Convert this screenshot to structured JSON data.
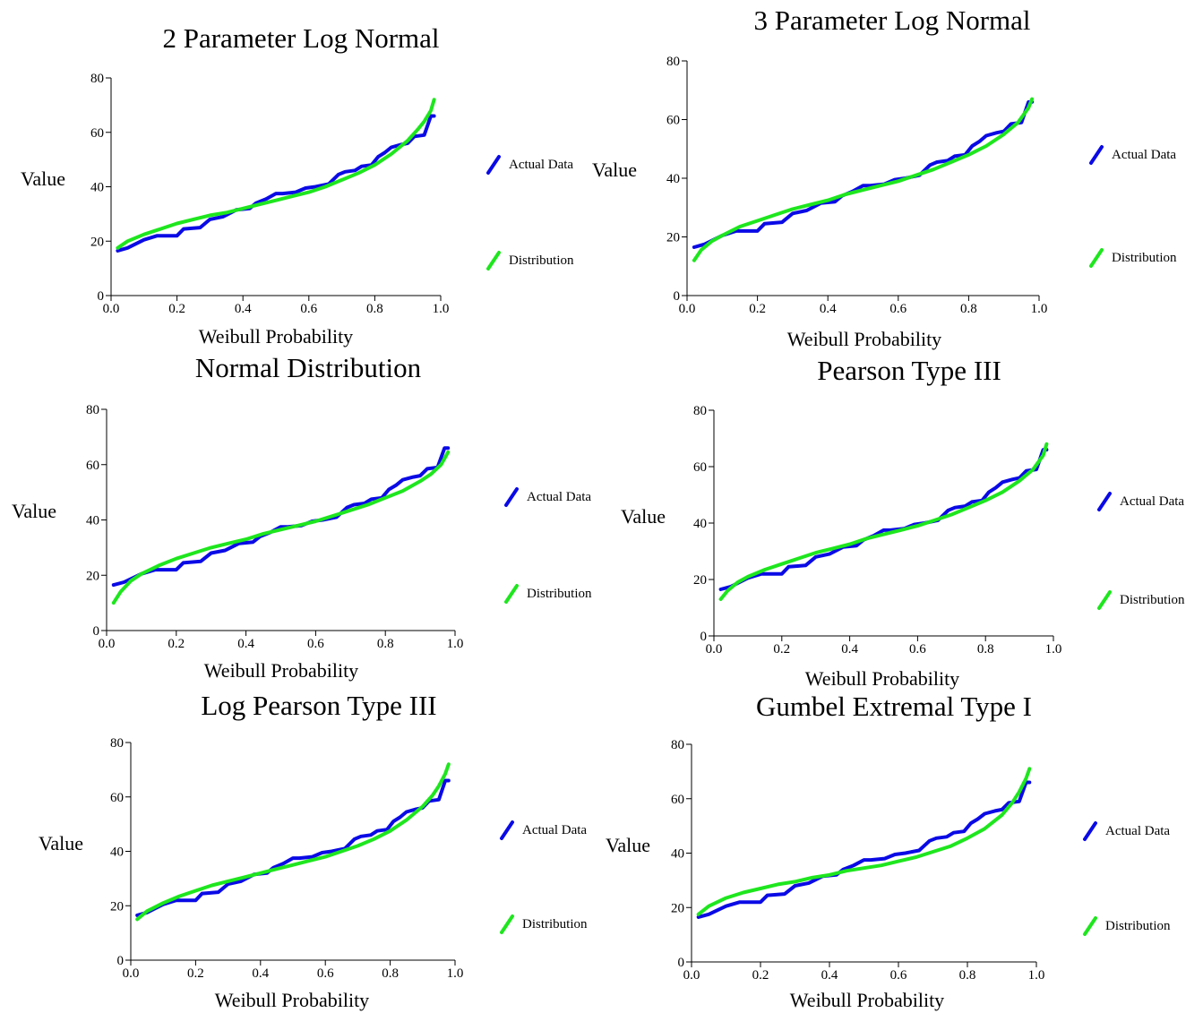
{
  "page": {
    "background": "#ffffff"
  },
  "legend": {
    "actual_label": "Actual Data",
    "distribution_label": "Distribution"
  },
  "colors": {
    "actual": "#0a0ae6",
    "distribution": "#1ee61e"
  },
  "chart_data": [
    {
      "type": "line",
      "title": "2 Parameter Log Normal",
      "xlabel": "Weibull Probability",
      "ylabel": "Value",
      "xlim": [
        0,
        1
      ],
      "ylim": [
        0,
        80
      ],
      "xticks": [
        "0.0",
        "0.2",
        "0.4",
        "0.6",
        "0.8",
        "1.0"
      ],
      "yticks": [
        "0",
        "20",
        "40",
        "60",
        "80"
      ],
      "legend_position": "right",
      "series": [
        {
          "name": "Actual Data",
          "color": "#0a0ae6",
          "x": [
            0.02,
            0.05,
            0.1,
            0.14,
            0.2,
            0.22,
            0.27,
            0.3,
            0.34,
            0.38,
            0.42,
            0.44,
            0.47,
            0.5,
            0.52,
            0.56,
            0.59,
            0.62,
            0.66,
            0.69,
            0.71,
            0.74,
            0.76,
            0.79,
            0.81,
            0.83,
            0.85,
            0.88,
            0.9,
            0.92,
            0.95,
            0.97,
            0.98
          ],
          "y": [
            16.5,
            17.5,
            20.5,
            22,
            22,
            24.5,
            25,
            28,
            29,
            31.5,
            32,
            34,
            35.5,
            37.5,
            37.5,
            38,
            39.5,
            40,
            41,
            44.5,
            45.5,
            46,
            47.5,
            48,
            51,
            52.5,
            54.5,
            55.5,
            56,
            58.5,
            59,
            66,
            66
          ]
        },
        {
          "name": "Distribution",
          "color": "#1ee61e",
          "x": [
            0.02,
            0.05,
            0.1,
            0.15,
            0.2,
            0.25,
            0.3,
            0.35,
            0.4,
            0.45,
            0.5,
            0.55,
            0.6,
            0.65,
            0.7,
            0.75,
            0.8,
            0.85,
            0.9,
            0.93,
            0.95,
            0.97,
            0.98
          ],
          "y": [
            17.5,
            20,
            22.5,
            24.5,
            26.5,
            28,
            29.5,
            30.5,
            32,
            33.5,
            35,
            36.5,
            38,
            40,
            42.5,
            45,
            48,
            52,
            57,
            61,
            64,
            68,
            72
          ]
        }
      ]
    },
    {
      "type": "line",
      "title": "3 Parameter Log Normal",
      "xlabel": "Weibull Probability",
      "ylabel": "Value",
      "xlim": [
        0,
        1
      ],
      "ylim": [
        0,
        80
      ],
      "xticks": [
        "0.0",
        "0.2",
        "0.4",
        "0.6",
        "0.8",
        "1.0"
      ],
      "yticks": [
        "0",
        "20",
        "40",
        "60",
        "80"
      ],
      "legend_position": "right",
      "series": [
        {
          "name": "Actual Data",
          "color": "#0a0ae6",
          "x": [
            0.02,
            0.05,
            0.1,
            0.14,
            0.2,
            0.22,
            0.27,
            0.3,
            0.34,
            0.38,
            0.42,
            0.44,
            0.47,
            0.5,
            0.52,
            0.56,
            0.59,
            0.62,
            0.66,
            0.69,
            0.71,
            0.74,
            0.76,
            0.79,
            0.81,
            0.83,
            0.85,
            0.88,
            0.9,
            0.92,
            0.95,
            0.97,
            0.98
          ],
          "y": [
            16.5,
            17.5,
            20.5,
            22,
            22,
            24.5,
            25,
            28,
            29,
            31.5,
            32,
            34,
            35.5,
            37.5,
            37.5,
            38,
            39.5,
            40,
            41,
            44.5,
            45.5,
            46,
            47.5,
            48,
            51,
            52.5,
            54.5,
            55.5,
            56,
            58.5,
            59,
            66,
            66
          ]
        },
        {
          "name": "Distribution",
          "color": "#1ee61e",
          "x": [
            0.02,
            0.04,
            0.07,
            0.1,
            0.15,
            0.2,
            0.25,
            0.3,
            0.35,
            0.4,
            0.45,
            0.5,
            0.55,
            0.6,
            0.65,
            0.7,
            0.75,
            0.8,
            0.85,
            0.9,
            0.94,
            0.97,
            0.98
          ],
          "y": [
            12,
            15.5,
            18.5,
            20.5,
            23.5,
            25.5,
            27.5,
            29.5,
            31,
            32.5,
            34.5,
            36,
            37.5,
            39,
            41,
            43,
            45.5,
            48,
            51,
            55,
            59,
            64,
            67
          ]
        }
      ]
    },
    {
      "type": "line",
      "title": "Normal Distribution",
      "xlabel": "Weibull Probability",
      "ylabel": "Value",
      "xlim": [
        0,
        1
      ],
      "ylim": [
        0,
        80
      ],
      "xticks": [
        "0.0",
        "0.2",
        "0.4",
        "0.6",
        "0.8",
        "1.0"
      ],
      "yticks": [
        "0",
        "20",
        "40",
        "60",
        "80"
      ],
      "legend_position": "right",
      "series": [
        {
          "name": "Actual Data",
          "color": "#0a0ae6",
          "x": [
            0.02,
            0.05,
            0.1,
            0.14,
            0.2,
            0.22,
            0.27,
            0.3,
            0.34,
            0.38,
            0.42,
            0.44,
            0.47,
            0.5,
            0.52,
            0.56,
            0.59,
            0.62,
            0.66,
            0.69,
            0.71,
            0.74,
            0.76,
            0.79,
            0.81,
            0.83,
            0.85,
            0.88,
            0.9,
            0.92,
            0.95,
            0.97,
            0.98
          ],
          "y": [
            16.5,
            17.5,
            20.5,
            22,
            22,
            24.5,
            25,
            28,
            29,
            31.5,
            32,
            34,
            35.5,
            37.5,
            37.5,
            38,
            39.5,
            40,
            41,
            44.5,
            45.5,
            46,
            47.5,
            48,
            51,
            52.5,
            54.5,
            55.5,
            56,
            58.5,
            59,
            66,
            66
          ]
        },
        {
          "name": "Distribution",
          "color": "#1ee61e",
          "x": [
            0.02,
            0.04,
            0.07,
            0.1,
            0.15,
            0.2,
            0.25,
            0.3,
            0.35,
            0.4,
            0.45,
            0.5,
            0.55,
            0.6,
            0.65,
            0.7,
            0.75,
            0.8,
            0.85,
            0.9,
            0.93,
            0.96,
            0.98
          ],
          "y": [
            10,
            14,
            18,
            20.5,
            23.5,
            26,
            28,
            30,
            31.5,
            33,
            35,
            36.5,
            38,
            39.5,
            41.5,
            43.5,
            45.5,
            48,
            50.5,
            54,
            56.5,
            60,
            64.5
          ]
        }
      ]
    },
    {
      "type": "line",
      "title": "Pearson Type III",
      "xlabel": "Weibull Probability",
      "ylabel": "Value",
      "xlim": [
        0,
        1
      ],
      "ylim": [
        0,
        80
      ],
      "xticks": [
        "0.0",
        "0.2",
        "0.4",
        "0.6",
        "0.8",
        "1.0"
      ],
      "yticks": [
        "0",
        "20",
        "40",
        "60",
        "80"
      ],
      "legend_position": "right",
      "series": [
        {
          "name": "Actual Data",
          "color": "#0a0ae6",
          "x": [
            0.02,
            0.05,
            0.1,
            0.14,
            0.2,
            0.22,
            0.27,
            0.3,
            0.34,
            0.38,
            0.42,
            0.44,
            0.47,
            0.5,
            0.52,
            0.56,
            0.59,
            0.62,
            0.66,
            0.69,
            0.71,
            0.74,
            0.76,
            0.79,
            0.81,
            0.83,
            0.85,
            0.88,
            0.9,
            0.92,
            0.95,
            0.97,
            0.98
          ],
          "y": [
            16.5,
            17.5,
            20.5,
            22,
            22,
            24.5,
            25,
            28,
            29,
            31.5,
            32,
            34,
            35.5,
            37.5,
            37.5,
            38,
            39.5,
            40,
            41,
            44.5,
            45.5,
            46,
            47.5,
            48,
            51,
            52.5,
            54.5,
            55.5,
            56,
            58.5,
            59,
            66,
            66
          ]
        },
        {
          "name": "Distribution",
          "color": "#1ee61e",
          "x": [
            0.02,
            0.04,
            0.07,
            0.1,
            0.15,
            0.2,
            0.25,
            0.3,
            0.35,
            0.4,
            0.45,
            0.5,
            0.55,
            0.6,
            0.65,
            0.7,
            0.75,
            0.8,
            0.85,
            0.9,
            0.94,
            0.97,
            0.98
          ],
          "y": [
            13,
            16,
            19,
            21,
            23.5,
            25.5,
            27.5,
            29.5,
            31,
            32.5,
            34.5,
            36,
            37.5,
            39,
            41,
            43,
            45.5,
            48,
            51,
            55,
            59,
            64,
            68
          ]
        }
      ]
    },
    {
      "type": "line",
      "title": "Log Pearson Type III",
      "xlabel": "Weibull Probability",
      "ylabel": "Value",
      "xlim": [
        0,
        1
      ],
      "ylim": [
        0,
        80
      ],
      "xticks": [
        "0.0",
        "0.2",
        "0.4",
        "0.6",
        "0.8",
        "1.0"
      ],
      "yticks": [
        "0",
        "20",
        "40",
        "60",
        "80"
      ],
      "legend_position": "right",
      "series": [
        {
          "name": "Actual Data",
          "color": "#0a0ae6",
          "x": [
            0.02,
            0.05,
            0.1,
            0.14,
            0.2,
            0.22,
            0.27,
            0.3,
            0.34,
            0.38,
            0.42,
            0.44,
            0.47,
            0.5,
            0.52,
            0.56,
            0.59,
            0.62,
            0.66,
            0.69,
            0.71,
            0.74,
            0.76,
            0.79,
            0.81,
            0.83,
            0.85,
            0.88,
            0.9,
            0.92,
            0.95,
            0.97,
            0.98
          ],
          "y": [
            16.5,
            17.5,
            20.5,
            22,
            22,
            24.5,
            25,
            28,
            29,
            31.5,
            32,
            34,
            35.5,
            37.5,
            37.5,
            38,
            39.5,
            40,
            41,
            44.5,
            45.5,
            46,
            47.5,
            48,
            51,
            52.5,
            54.5,
            55.5,
            56,
            58.5,
            59,
            66,
            66
          ]
        },
        {
          "name": "Distribution",
          "color": "#1ee61e",
          "x": [
            0.02,
            0.05,
            0.1,
            0.15,
            0.2,
            0.25,
            0.3,
            0.35,
            0.4,
            0.45,
            0.5,
            0.55,
            0.6,
            0.65,
            0.7,
            0.75,
            0.8,
            0.85,
            0.9,
            0.93,
            0.95,
            0.97,
            0.98
          ],
          "y": [
            15,
            18,
            21,
            23.5,
            25.5,
            27.5,
            29,
            30.5,
            32,
            33.5,
            35,
            36.5,
            38,
            40,
            42,
            44.5,
            47.5,
            51.5,
            56.5,
            60.5,
            64,
            68.5,
            72
          ]
        }
      ]
    },
    {
      "type": "line",
      "title": "Gumbel Extremal Type I",
      "xlabel": "Weibull Probability",
      "ylabel": "Value",
      "xlim": [
        0,
        1
      ],
      "ylim": [
        0,
        80
      ],
      "xticks": [
        "0.0",
        "0.2",
        "0.4",
        "0.6",
        "0.8",
        "1.0"
      ],
      "yticks": [
        "0",
        "20",
        "40",
        "60",
        "80"
      ],
      "legend_position": "right",
      "series": [
        {
          "name": "Actual Data",
          "color": "#0a0ae6",
          "x": [
            0.02,
            0.05,
            0.1,
            0.14,
            0.2,
            0.22,
            0.27,
            0.3,
            0.34,
            0.38,
            0.42,
            0.44,
            0.47,
            0.5,
            0.52,
            0.56,
            0.59,
            0.62,
            0.66,
            0.69,
            0.71,
            0.74,
            0.76,
            0.79,
            0.81,
            0.83,
            0.85,
            0.88,
            0.9,
            0.92,
            0.95,
            0.97,
            0.98
          ],
          "y": [
            16.5,
            17.5,
            20.5,
            22,
            22,
            24.5,
            25,
            28,
            29,
            31.5,
            32,
            34,
            35.5,
            37.5,
            37.5,
            38,
            39.5,
            40,
            41,
            44.5,
            45.5,
            46,
            47.5,
            48,
            51,
            52.5,
            54.5,
            55.5,
            56,
            58.5,
            59,
            66,
            66
          ]
        },
        {
          "name": "Distribution",
          "color": "#1ee61e",
          "x": [
            0.02,
            0.05,
            0.1,
            0.15,
            0.2,
            0.25,
            0.3,
            0.35,
            0.4,
            0.45,
            0.5,
            0.55,
            0.6,
            0.65,
            0.7,
            0.75,
            0.8,
            0.85,
            0.9,
            0.93,
            0.95,
            0.97,
            0.98
          ],
          "y": [
            17.5,
            20.5,
            23.5,
            25.5,
            27,
            28.5,
            29.5,
            31,
            32,
            33.5,
            34.5,
            35.5,
            37,
            38.5,
            40.5,
            42.5,
            45.5,
            49,
            54,
            58.5,
            62.5,
            67.5,
            71
          ]
        }
      ]
    }
  ]
}
